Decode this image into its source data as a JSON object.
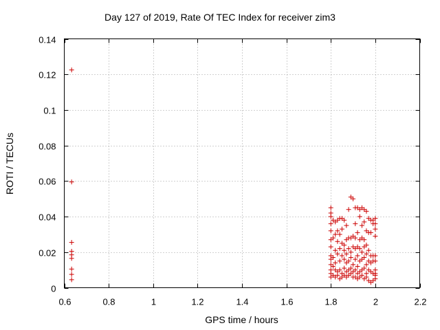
{
  "chart_data": {
    "type": "scatter",
    "title": "Day 127 of 2019, Rate Of TEC Index for receiver zim3",
    "xlabel": "GPS time / hours",
    "ylabel": "ROTI / TECUs",
    "xlim": [
      0.6,
      2.2
    ],
    "ylim": [
      0,
      0.14
    ],
    "xticks": [
      "0.6",
      "0.8",
      "1",
      "1.2",
      "1.4",
      "1.6",
      "1.8",
      "2",
      "2.2"
    ],
    "yticks": [
      "0",
      "0.02",
      "0.04",
      "0.06",
      "0.08",
      "0.1",
      "0.12",
      "0.14"
    ],
    "grid": true,
    "marker": "+",
    "color": "#cc0000",
    "series": [
      {
        "name": "zim3",
        "points": [
          [
            0.633,
            0.1225
          ],
          [
            0.633,
            0.0595
          ],
          [
            0.633,
            0.0255
          ],
          [
            0.633,
            0.0205
          ],
          [
            0.633,
            0.0185
          ],
          [
            0.633,
            0.0165
          ],
          [
            0.633,
            0.0105
          ],
          [
            0.633,
            0.0075
          ],
          [
            0.633,
            0.0045
          ],
          [
            1.8,
            0.045
          ],
          [
            1.8,
            0.042
          ],
          [
            1.8,
            0.04
          ],
          [
            1.8,
            0.036
          ],
          [
            1.8,
            0.032
          ],
          [
            1.8,
            0.027
          ],
          [
            1.8,
            0.023
          ],
          [
            1.8,
            0.018
          ],
          [
            1.8,
            0.016
          ],
          [
            1.8,
            0.013
          ],
          [
            1.8,
            0.01
          ],
          [
            1.8,
            0.008
          ],
          [
            1.8,
            0.006
          ],
          [
            1.81,
            0.038
          ],
          [
            1.81,
            0.028
          ],
          [
            1.81,
            0.017
          ],
          [
            1.81,
            0.012
          ],
          [
            1.81,
            0.007
          ],
          [
            1.82,
            0.037
          ],
          [
            1.82,
            0.03
          ],
          [
            1.82,
            0.021
          ],
          [
            1.82,
            0.014
          ],
          [
            1.82,
            0.01
          ],
          [
            1.82,
            0.006
          ],
          [
            1.83,
            0.038
          ],
          [
            1.83,
            0.032
          ],
          [
            1.83,
            0.026
          ],
          [
            1.83,
            0.019
          ],
          [
            1.83,
            0.009
          ],
          [
            1.83,
            0.007
          ],
          [
            1.84,
            0.039
          ],
          [
            1.84,
            0.03
          ],
          [
            1.84,
            0.022
          ],
          [
            1.84,
            0.015
          ],
          [
            1.84,
            0.01
          ],
          [
            1.84,
            0.005
          ],
          [
            1.85,
            0.039
          ],
          [
            1.85,
            0.033
          ],
          [
            1.85,
            0.025
          ],
          [
            1.85,
            0.018
          ],
          [
            1.85,
            0.008
          ],
          [
            1.85,
            0.006
          ],
          [
            1.86,
            0.038
          ],
          [
            1.86,
            0.024
          ],
          [
            1.86,
            0.021
          ],
          [
            1.86,
            0.016
          ],
          [
            1.86,
            0.011
          ],
          [
            1.86,
            0.007
          ],
          [
            1.87,
            0.035
          ],
          [
            1.87,
            0.027
          ],
          [
            1.87,
            0.019
          ],
          [
            1.87,
            0.014
          ],
          [
            1.87,
            0.009
          ],
          [
            1.87,
            0.006
          ],
          [
            1.88,
            0.044
          ],
          [
            1.88,
            0.028
          ],
          [
            1.88,
            0.022
          ],
          [
            1.88,
            0.015
          ],
          [
            1.88,
            0.01
          ],
          [
            1.88,
            0.007
          ],
          [
            1.89,
            0.051
          ],
          [
            1.89,
            0.028
          ],
          [
            1.89,
            0.02
          ],
          [
            1.89,
            0.017
          ],
          [
            1.89,
            0.011
          ],
          [
            1.89,
            0.008
          ],
          [
            1.9,
            0.05
          ],
          [
            1.9,
            0.029
          ],
          [
            1.9,
            0.023
          ],
          [
            1.9,
            0.013
          ],
          [
            1.9,
            0.009
          ],
          [
            1.9,
            0.006
          ],
          [
            1.91,
            0.045
          ],
          [
            1.91,
            0.036
          ],
          [
            1.91,
            0.028
          ],
          [
            1.91,
            0.022
          ],
          [
            1.91,
            0.016
          ],
          [
            1.91,
            0.01
          ],
          [
            1.91,
            0.006
          ],
          [
            1.92,
            0.045
          ],
          [
            1.92,
            0.031
          ],
          [
            1.92,
            0.023
          ],
          [
            1.92,
            0.018
          ],
          [
            1.92,
            0.012
          ],
          [
            1.92,
            0.008
          ],
          [
            1.92,
            0.005
          ],
          [
            1.93,
            0.044
          ],
          [
            1.93,
            0.04
          ],
          [
            1.93,
            0.027
          ],
          [
            1.93,
            0.022
          ],
          [
            1.93,
            0.015
          ],
          [
            1.93,
            0.009
          ],
          [
            1.93,
            0.006
          ],
          [
            1.94,
            0.045
          ],
          [
            1.94,
            0.035
          ],
          [
            1.94,
            0.028
          ],
          [
            1.94,
            0.02
          ],
          [
            1.94,
            0.016
          ],
          [
            1.94,
            0.01
          ],
          [
            1.94,
            0.007
          ],
          [
            1.95,
            0.044
          ],
          [
            1.95,
            0.037
          ],
          [
            1.95,
            0.027
          ],
          [
            1.95,
            0.023
          ],
          [
            1.95,
            0.017
          ],
          [
            1.95,
            0.011
          ],
          [
            1.95,
            0.005
          ],
          [
            1.96,
            0.043
          ],
          [
            1.96,
            0.032
          ],
          [
            1.96,
            0.024
          ],
          [
            1.96,
            0.019
          ],
          [
            1.96,
            0.013
          ],
          [
            1.96,
            0.008
          ],
          [
            1.96,
            0.006
          ],
          [
            1.97,
            0.039
          ],
          [
            1.97,
            0.031
          ],
          [
            1.97,
            0.021
          ],
          [
            1.97,
            0.015
          ],
          [
            1.97,
            0.01
          ],
          [
            1.97,
            0.004
          ],
          [
            1.98,
            0.038
          ],
          [
            1.98,
            0.031
          ],
          [
            1.98,
            0.018
          ],
          [
            1.98,
            0.014
          ],
          [
            1.98,
            0.009
          ],
          [
            1.98,
            0.003
          ],
          [
            1.99,
            0.038
          ],
          [
            1.99,
            0.036
          ],
          [
            1.99,
            0.018
          ],
          [
            1.99,
            0.015
          ],
          [
            1.99,
            0.008
          ],
          [
            1.99,
            0.004
          ],
          [
            2.0,
            0.039
          ],
          [
            2.0,
            0.036
          ],
          [
            2.0,
            0.033
          ],
          [
            2.0,
            0.029
          ],
          [
            2.0,
            0.018
          ],
          [
            2.0,
            0.015
          ],
          [
            2.0,
            0.01
          ],
          [
            2.0,
            0.008
          ],
          [
            2.0,
            0.007
          ],
          [
            2.0,
            0.005
          ]
        ]
      }
    ]
  }
}
